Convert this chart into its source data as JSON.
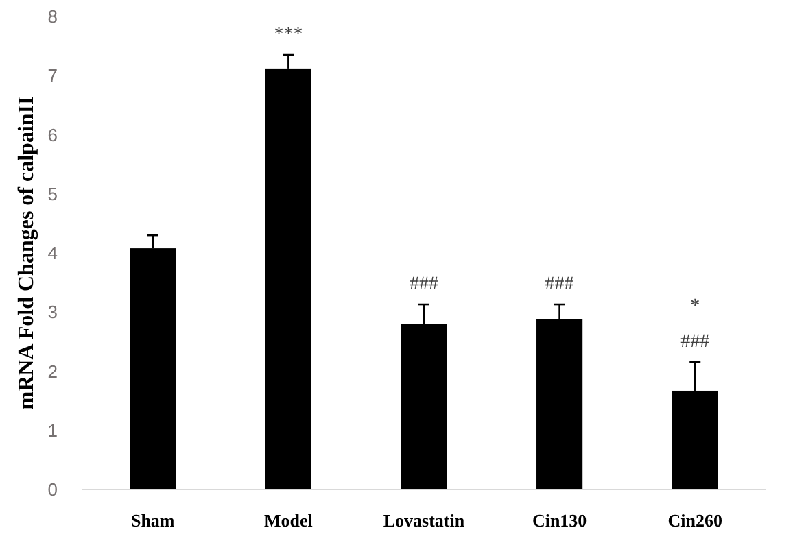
{
  "chart_data": {
    "type": "bar",
    "ylabel": "mRNA Fold Changes of calpainII",
    "categories": [
      "Sham",
      "Model",
      "Lovastatin",
      "Cin130",
      "Cin260"
    ],
    "values": [
      4.08,
      7.12,
      2.8,
      2.88,
      1.67
    ],
    "errors": [
      [
        4.08,
        4.3
      ],
      [
        7.12,
        7.35
      ],
      [
        2.8,
        3.13
      ],
      [
        2.88,
        3.13
      ],
      [
        1.67,
        2.16
      ]
    ],
    "color": "#000000",
    "ylim": [
      0,
      8
    ],
    "yticks": [
      0,
      1,
      2,
      3,
      4,
      5,
      6,
      7,
      8
    ],
    "grid": false,
    "annotations": [
      {
        "text": "***",
        "x": "Model",
        "y": 7.12
      },
      {
        "text": "###",
        "x": "Lovastatin",
        "y": 2.8
      },
      {
        "text": "###",
        "x": "Cin130",
        "y": 2.88
      },
      {
        "text": "###",
        "x": "Cin260",
        "y": 1.67
      },
      "*"
    ]
  }
}
